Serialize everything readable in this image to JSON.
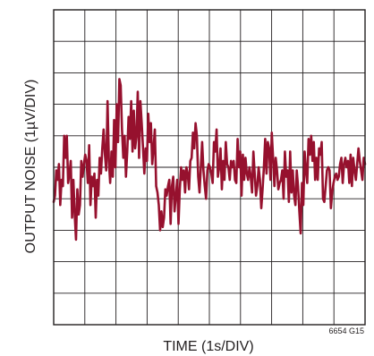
{
  "chart_data": {
    "type": "line",
    "xlabel": "TIME (1s/DIV)",
    "ylabel": "OUTPUT NOISE (1µV/DIV)",
    "figure_code": "6654 G15",
    "x_divisions": 10,
    "y_divisions": 10,
    "xlim": [
      0,
      10
    ],
    "ylim": [
      -5,
      5
    ],
    "grid": true,
    "tick_labels": false,
    "colors": {
      "trace": "#96112e",
      "grid": "#231f20",
      "text": "#231f20"
    },
    "series": [
      {
        "name": "",
        "values": [
          -1.1,
          -0.9,
          -0.1,
          -0.4,
          0.1,
          -1.2,
          -0.4,
          -0.6,
          1.0,
          0.3,
          1.0,
          -0.5,
          -0.2,
          0.2,
          -1.6,
          -0.4,
          -1.5,
          -2.3,
          -0.7,
          -1.5,
          -1.2,
          0.2,
          -0.3,
          0.1,
          0.4,
          0.2,
          -0.5,
          0.7,
          -1.2,
          -0.3,
          -0.6,
          -0.2,
          -1.6,
          -0.4,
          -0.9,
          0.3,
          -0.2,
          0.6,
          1.2,
          0.4,
          -0.1,
          2.1,
          0.2,
          -0.5,
          0.5,
          -0.3,
          1.5,
          0.0,
          2.0,
          0.8,
          2.8,
          2.6,
          1.2,
          0.3,
          1.0,
          -0.3,
          0.5,
          1.6,
          0.9,
          2.1,
          0.5,
          1.8,
          0.6,
          1.0,
          2.4,
          0.3,
          2.1,
          1.4,
          0.6,
          -0.2,
          0.6,
          0.2,
          1.7,
          0.8,
          1.4,
          0.1,
          0.6,
          1.2,
          -0.6,
          -0.8,
          -1.2,
          -2.0,
          -1.4,
          -1.9,
          -1.6,
          -0.7,
          -0.9,
          -0.6,
          -0.4,
          -1.8,
          -0.6,
          -0.3,
          -1.4,
          -0.9,
          -0.4,
          -1.8,
          -0.7,
          0.0,
          -0.4,
          -0.1,
          -0.8,
          0.0,
          -0.2,
          -0.7,
          0.2,
          0.3,
          1.1,
          0.6,
          1.4,
          1.0,
          -0.3,
          -0.8,
          0.0,
          0.8,
          -0.1,
          -0.6,
          -1.0,
          -0.1,
          0.1,
          0.0,
          -0.2,
          -0.5,
          0.8,
          0.5,
          1.2,
          -0.3,
          0.0,
          0.6,
          -0.7,
          0.2,
          -0.4,
          0.8,
          0.1,
          0.0,
          -0.4,
          0.2,
          0.0,
          0.2,
          -0.4,
          -0.5,
          0.9,
          0.0,
          0.5,
          -0.9,
          0.4,
          -0.4,
          0.3,
          -0.2,
          -0.4,
          0.0,
          -0.3,
          -0.8,
          0.5,
          -0.2,
          -0.9,
          -0.6,
          0.0,
          -0.4,
          -1.3,
          -0.7,
          0.0,
          0.9,
          -0.2,
          0.8,
          0.6,
          -0.4,
          1.1,
          0.3,
          -0.6,
          0.3,
          -0.1,
          -0.7,
          -0.5,
          -0.4,
          -0.1,
          -1.0,
          0.5,
          -0.3,
          -0.1,
          -1.1,
          0.5,
          -0.8,
          -0.1,
          -0.9,
          -1.2,
          -0.1,
          -0.6,
          -1.4,
          -2.1,
          -0.5,
          -1.2,
          0.5,
          -0.1,
          -0.5,
          0.9,
          0.4,
          1.0,
          0.2,
          0.8,
          -0.4,
          0.3,
          -0.4,
          0.6,
          0.4,
          0.8,
          -1.0,
          -1.1,
          -0.6,
          -0.1,
          0.0,
          -0.1,
          -1.3,
          -0.8,
          -0.5,
          -0.3,
          -0.2,
          -0.4,
          -0.3,
          0.1,
          0.3,
          -0.5,
          0.1,
          0.3,
          0.0,
          0.2,
          -0.5,
          0.4,
          -0.6,
          0.3,
          -0.1,
          -0.4,
          0.1,
          0.6,
          0.2,
          -0.1,
          -0.4,
          0.3,
          0.1
        ]
      }
    ]
  }
}
